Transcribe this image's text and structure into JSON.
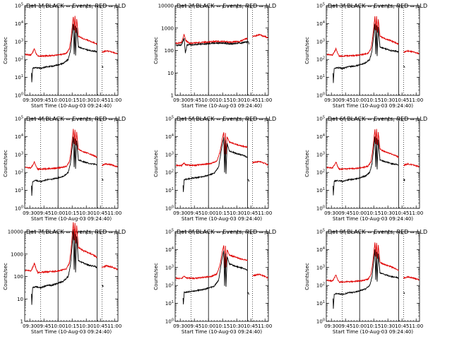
{
  "chart_data": [
    {
      "type": "line",
      "title": "Det 1f BLACK = Events, RED = LLD",
      "xlabel": "Start Time (10-Aug-03 09:24:40)",
      "ylabel": "Counts/sec",
      "yscale": "log",
      "ylim": [
        1,
        100000
      ],
      "ytick_labels": [
        "10^0",
        "10^1",
        "10^2",
        "10^3",
        "10^4",
        "10^5"
      ],
      "xlim": [
        9.41,
        11.06
      ],
      "xtick_labels": [
        "09:30",
        "09:45",
        "10:00",
        "10:15",
        "10:30",
        "10:45",
        "11:00"
      ],
      "dotted_lines_at": [
        9.69,
        10.78
      ],
      "solid_lines_at": [
        10.0,
        10.69
      ],
      "series": [
        {
          "name": "LLD",
          "color": "#e00000",
          "shape": "A"
        },
        {
          "name": "Events",
          "color": "#000000",
          "shape": "A"
        }
      ]
    },
    {
      "type": "line",
      "title": "Det 2f BLACK = Events, RED = LLD",
      "xlabel": "Start Time (10-Aug-03 09:24:40)",
      "ylabel": "Counts/sec",
      "yscale": "log",
      "ylim": [
        1,
        10000
      ],
      "ytick_labels": [
        "1",
        "10",
        "100",
        "1000",
        "10000"
      ],
      "xlim": [
        9.41,
        11.06
      ],
      "xtick_labels": [
        "09:30",
        "09:45",
        "10:00",
        "10:15",
        "10:30",
        "10:45",
        "11:00"
      ],
      "dotted_lines_at": [
        9.69,
        10.78
      ],
      "solid_lines_at": [
        10.0,
        10.69
      ],
      "series": [
        {
          "name": "LLD",
          "color": "#e00000",
          "shape": "B"
        },
        {
          "name": "Events",
          "color": "#000000",
          "shape": "B"
        }
      ]
    },
    {
      "type": "line",
      "title": "Det 3f BLACK = Events, RED = LLD",
      "xlabel": "Start Time (10-Aug-03 09:24:40)",
      "ylabel": "Counts/sec",
      "yscale": "log",
      "ylim": [
        1,
        100000
      ],
      "ytick_labels": [
        "10^0",
        "10^1",
        "10^2",
        "10^3",
        "10^4",
        "10^5"
      ],
      "xlim": [
        9.41,
        11.06
      ],
      "xtick_labels": [
        "09:30",
        "09:45",
        "10:00",
        "10:15",
        "10:30",
        "10:45",
        "11:00"
      ],
      "dotted_lines_at": [
        9.69,
        10.78
      ],
      "solid_lines_at": [
        10.0,
        10.69
      ],
      "series": [
        {
          "name": "LLD",
          "color": "#e00000",
          "shape": "A"
        },
        {
          "name": "Events",
          "color": "#000000",
          "shape": "A"
        }
      ]
    },
    {
      "type": "line",
      "title": "Det 4f BLACK = Events, RED = LLD",
      "xlabel": "Start Time (10-Aug-03 09:24:40)",
      "ylabel": "Counts/sec",
      "yscale": "log",
      "ylim": [
        1,
        100000
      ],
      "ytick_labels": [
        "10^0",
        "10^1",
        "10^2",
        "10^3",
        "10^4",
        "10^5"
      ],
      "xlim": [
        9.41,
        11.06
      ],
      "xtick_labels": [
        "09:30",
        "09:45",
        "10:00",
        "10:15",
        "10:30",
        "10:45",
        "11:00"
      ],
      "dotted_lines_at": [
        9.69,
        10.78
      ],
      "solid_lines_at": [
        10.0,
        10.69
      ],
      "series": [
        {
          "name": "LLD",
          "color": "#e00000",
          "shape": "A"
        },
        {
          "name": "Events",
          "color": "#000000",
          "shape": "A"
        }
      ]
    },
    {
      "type": "line",
      "title": "Det 5f BLACK = Events, RED = LLD",
      "xlabel": "Start Time (10-Aug-03 09:24:40)",
      "ylabel": "Counts/sec",
      "yscale": "log",
      "ylim": [
        1,
        100000
      ],
      "ytick_labels": [
        "10^0",
        "10^1",
        "10^2",
        "10^3",
        "10^4",
        "10^5"
      ],
      "xlim": [
        9.41,
        11.06
      ],
      "xtick_labels": [
        "09:30",
        "09:45",
        "10:00",
        "10:15",
        "10:30",
        "10:45",
        "11:00"
      ],
      "dotted_lines_at": [
        9.69,
        10.78
      ],
      "solid_lines_at": [
        10.0,
        10.69
      ],
      "series": [
        {
          "name": "LLD",
          "color": "#e00000",
          "shape": "C"
        },
        {
          "name": "Events",
          "color": "#000000",
          "shape": "C"
        }
      ]
    },
    {
      "type": "line",
      "title": "Det 6f BLACK = Events, RED = LLD",
      "xlabel": "Start Time (10-Aug-03 09:24:40)",
      "ylabel": "Counts/sec",
      "yscale": "log",
      "ylim": [
        1,
        100000
      ],
      "ytick_labels": [
        "10^0",
        "10^1",
        "10^2",
        "10^3",
        "10^4",
        "10^5"
      ],
      "xlim": [
        9.41,
        11.06
      ],
      "xtick_labels": [
        "09:30",
        "09:45",
        "10:00",
        "10:15",
        "10:30",
        "10:45",
        "11:00"
      ],
      "dotted_lines_at": [
        9.69,
        10.78
      ],
      "solid_lines_at": [
        10.0,
        10.69
      ],
      "series": [
        {
          "name": "LLD",
          "color": "#e00000",
          "shape": "A"
        },
        {
          "name": "Events",
          "color": "#000000",
          "shape": "A"
        }
      ]
    },
    {
      "type": "line",
      "title": "Det 7f BLACK = Events, RED = LLD",
      "xlabel": "Start Time (10-Aug-03 09:24:40)",
      "ylabel": "Counts/sec",
      "yscale": "log",
      "ylim": [
        1,
        10000
      ],
      "ytick_labels": [
        "1",
        "10",
        "100",
        "1000",
        "10000"
      ],
      "xlim": [
        9.41,
        11.06
      ],
      "xtick_labels": [
        "09:30",
        "09:45",
        "10:00",
        "10:15",
        "10:30",
        "10:45",
        "11:00"
      ],
      "dotted_lines_at": [
        9.69,
        10.78
      ],
      "solid_lines_at": [
        10.0,
        10.69
      ],
      "series": [
        {
          "name": "LLD",
          "color": "#e00000",
          "shape": "A"
        },
        {
          "name": "Events",
          "color": "#000000",
          "shape": "A"
        }
      ]
    },
    {
      "type": "line",
      "title": "Det 8f BLACK = Events, RED = LLD",
      "xlabel": "Start Time (10-Aug-03 09:24:40)",
      "ylabel": "Counts/sec",
      "yscale": "log",
      "ylim": [
        1,
        100000
      ],
      "ytick_labels": [
        "10^0",
        "10^1",
        "10^2",
        "10^3",
        "10^4",
        "10^5"
      ],
      "xlim": [
        9.41,
        11.06
      ],
      "xtick_labels": [
        "09:30",
        "09:45",
        "10:00",
        "10:15",
        "10:30",
        "10:45",
        "11:00"
      ],
      "dotted_lines_at": [
        9.69,
        10.78
      ],
      "solid_lines_at": [
        10.0,
        10.69
      ],
      "series": [
        {
          "name": "LLD",
          "color": "#e00000",
          "shape": "C"
        },
        {
          "name": "Events",
          "color": "#000000",
          "shape": "C"
        }
      ]
    },
    {
      "type": "line",
      "title": "Det 9f BLACK = Events, RED = LLD",
      "xlabel": "Start Time (10-Aug-03 09:24:40)",
      "ylabel": "Counts/sec",
      "yscale": "log",
      "ylim": [
        1,
        100000
      ],
      "ytick_labels": [
        "10^0",
        "10^1",
        "10^2",
        "10^3",
        "10^4",
        "10^5"
      ],
      "xlim": [
        9.41,
        11.06
      ],
      "xtick_labels": [
        "09:30",
        "09:45",
        "10:00",
        "10:15",
        "10:30",
        "10:45",
        "11:00"
      ],
      "dotted_lines_at": [
        9.69,
        10.78
      ],
      "solid_lines_at": [
        10.0,
        10.69
      ],
      "series": [
        {
          "name": "LLD",
          "color": "#e00000",
          "shape": "A"
        },
        {
          "name": "Events",
          "color": "#000000",
          "shape": "A"
        }
      ]
    }
  ]
}
